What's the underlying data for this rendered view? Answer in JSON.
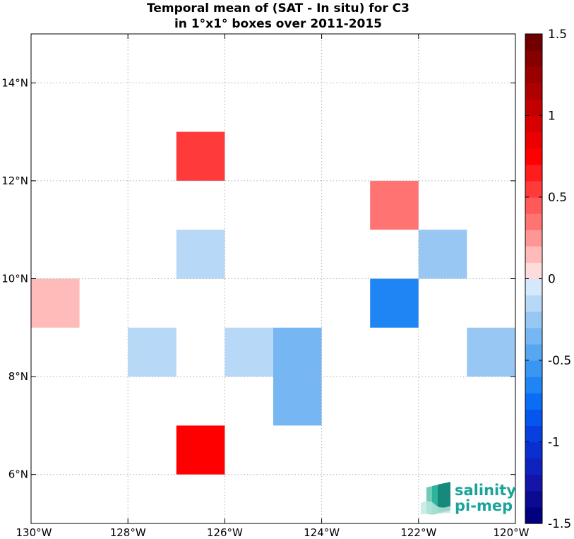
{
  "chart_data": {
    "type": "heatmap",
    "title_lines": [
      "Temporal mean of (SAT - In situ) for C3",
      "in 1°x1° boxes over 2011-2015"
    ],
    "x_axis": {
      "unit": "degrees longitude",
      "range": [
        -130,
        -120
      ],
      "ticks": [
        -130,
        -128,
        -126,
        -124,
        -122,
        -120
      ],
      "tick_labels": [
        "130°W",
        "128°W",
        "126°W",
        "124°W",
        "122°W",
        "120°W"
      ]
    },
    "y_axis": {
      "unit": "degrees latitude",
      "range": [
        5,
        15
      ],
      "ticks": [
        6,
        8,
        10,
        12,
        14
      ],
      "tick_labels": [
        "6°N",
        "8°N",
        "10°N",
        "12°N",
        "14°N"
      ]
    },
    "grid": "dotted",
    "cells": [
      {
        "lon": [
          -127,
          -126
        ],
        "lat": [
          12,
          13
        ],
        "value": 0.55
      },
      {
        "lon": [
          -123,
          -122
        ],
        "lat": [
          11,
          12
        ],
        "value": 0.3
      },
      {
        "lon": [
          -127,
          -126
        ],
        "lat": [
          10,
          11
        ],
        "value": -0.15
      },
      {
        "lon": [
          -122,
          -121
        ],
        "lat": [
          10,
          11
        ],
        "value": -0.25
      },
      {
        "lon": [
          -130,
          -129
        ],
        "lat": [
          9,
          10
        ],
        "value": 0.15
      },
      {
        "lon": [
          -123,
          -122
        ],
        "lat": [
          9,
          10
        ],
        "value": -0.65
      },
      {
        "lon": [
          -128,
          -127
        ],
        "lat": [
          8,
          9
        ],
        "value": -0.15
      },
      {
        "lon": [
          -126,
          -125
        ],
        "lat": [
          8,
          9
        ],
        "value": -0.15
      },
      {
        "lon": [
          -125,
          -124
        ],
        "lat": [
          7,
          9
        ],
        "value": -0.35
      },
      {
        "lon": [
          -121,
          -120
        ],
        "lat": [
          8,
          9
        ],
        "value": -0.25
      },
      {
        "lon": [
          -127,
          -126
        ],
        "lat": [
          6,
          7
        ],
        "value": 0.7
      }
    ],
    "colorbar": {
      "range": [
        -1.5,
        1.5
      ],
      "ticks": [
        1.5,
        1,
        0.5,
        0,
        -0.5,
        -1,
        -1.5
      ],
      "tick_labels": [
        "1.5",
        "1",
        "0.5",
        "0",
        "-0.5",
        "-1",
        "-1.5"
      ],
      "levels": 30,
      "colors": {
        "neg": [
          "#000080",
          "#0a0a92",
          "#1414a8",
          "#0e22bd",
          "#0a2fd0",
          "#0840e0",
          "#0555ef",
          "#0a6ef5",
          "#1f85f5",
          "#3a96f3",
          "#57a6f2",
          "#76b6f3",
          "#98c7f4",
          "#b8d8f8",
          "#d6e8fb"
        ],
        "pos": [
          "#ffdcdc",
          "#ffbaba",
          "#ff9696",
          "#ff7373",
          "#ff5959",
          "#ff3a3a",
          "#ff1c1c",
          "#ff0000",
          "#ea0000",
          "#d60000",
          "#c20000",
          "#ae0000",
          "#9a0000",
          "#860000",
          "#700000"
        ]
      }
    },
    "logo": {
      "line1": "salinity",
      "line2": "pi-mep"
    }
  }
}
